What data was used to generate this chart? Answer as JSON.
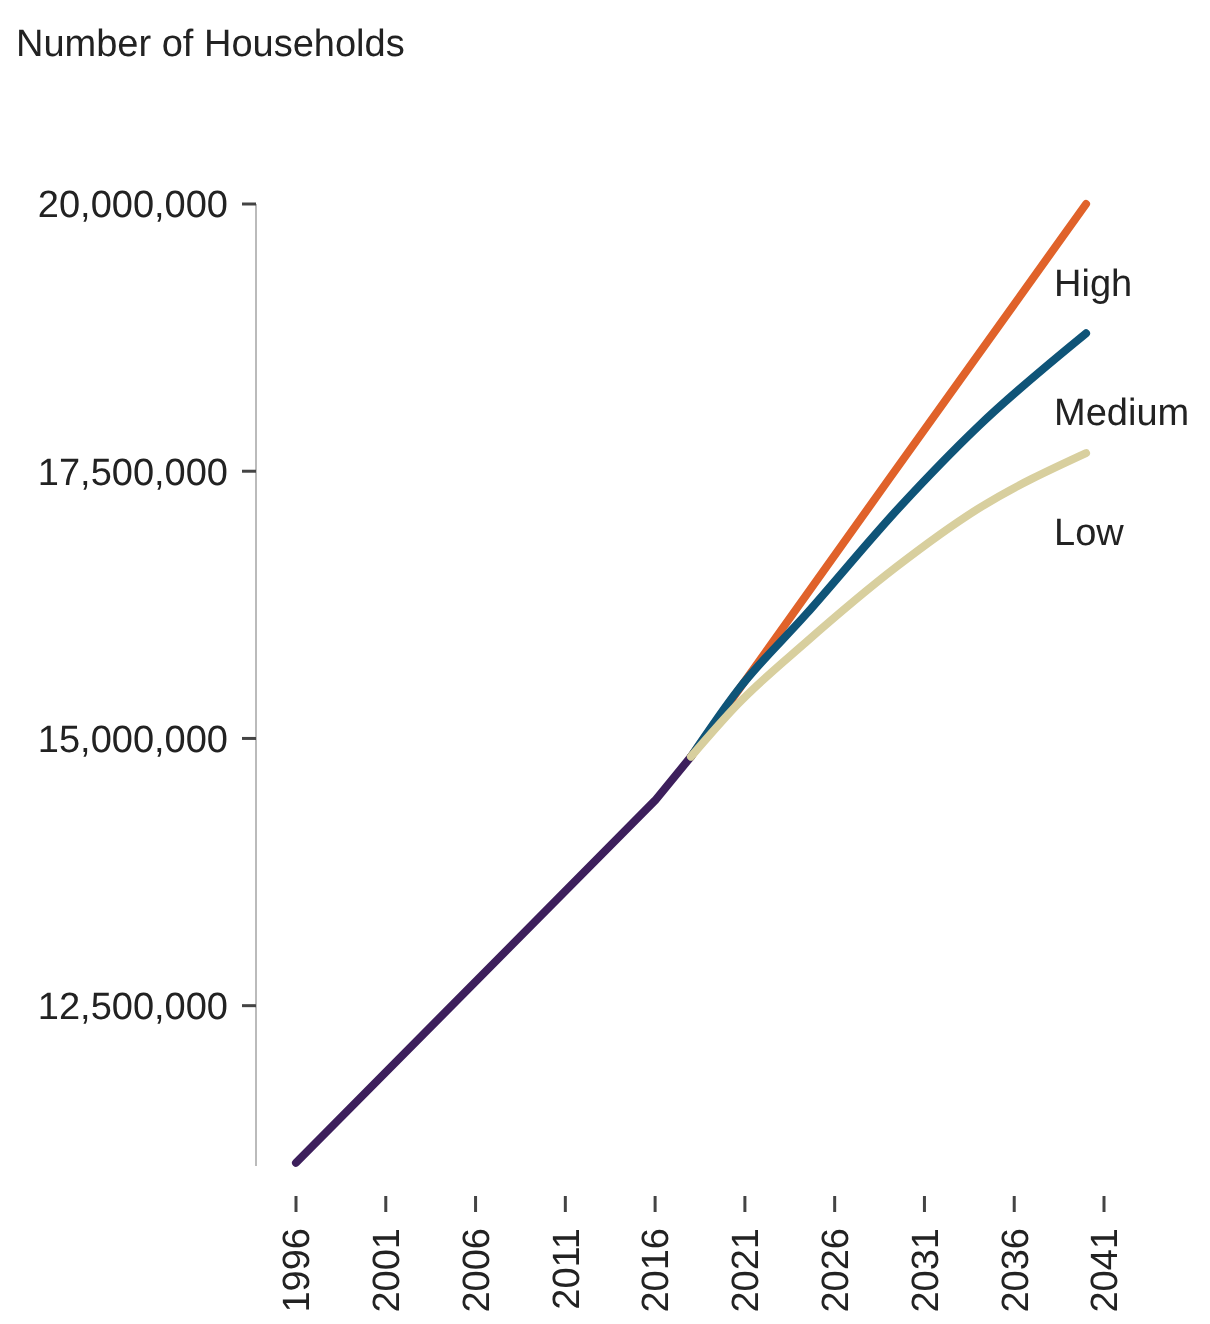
{
  "chart_data": {
    "type": "line",
    "ylabel": "Number of Households",
    "xlim": [
      1996,
      2041
    ],
    "xticks": [
      1996,
      2001,
      2006,
      2011,
      2016,
      2021,
      2026,
      2031,
      2036,
      2041
    ],
    "ylim": [
      11000000,
      20000000
    ],
    "yticks": [
      {
        "value": 12500000,
        "label": "12,500,000"
      },
      {
        "value": 15000000,
        "label": "15,000,000"
      },
      {
        "value": 17500000,
        "label": "17,500,000"
      },
      {
        "value": 20000000,
        "label": "20,000,000"
      }
    ],
    "grid": false,
    "legend": false,
    "marker": "none",
    "line_style": "solid",
    "series": [
      {
        "color": "#3d1f5c",
        "x": [
          1996,
          2016,
          2018
        ],
        "values": [
          11030000,
          14420000,
          14830000
        ]
      },
      {
        "name": "High",
        "color": "#e0622a",
        "x": [
          2018,
          2029,
          2040
        ],
        "values": [
          14830000,
          17420000,
          20000000
        ]
      },
      {
        "name": "Medium",
        "color": "#0f5478",
        "x": [
          2018,
          2020.6,
          2024.4,
          2029.7,
          2034,
          2040
        ],
        "values": [
          14830000,
          15450000,
          16160000,
          17180000,
          17920000,
          18790000
        ]
      },
      {
        "name": "Low",
        "color": "#d8cf9e",
        "x": [
          2018,
          2020.6,
          2024.4,
          2029.4,
          2034,
          2040
        ],
        "values": [
          14830000,
          15320000,
          15900000,
          16600000,
          17150000,
          17670000
        ]
      }
    ]
  }
}
